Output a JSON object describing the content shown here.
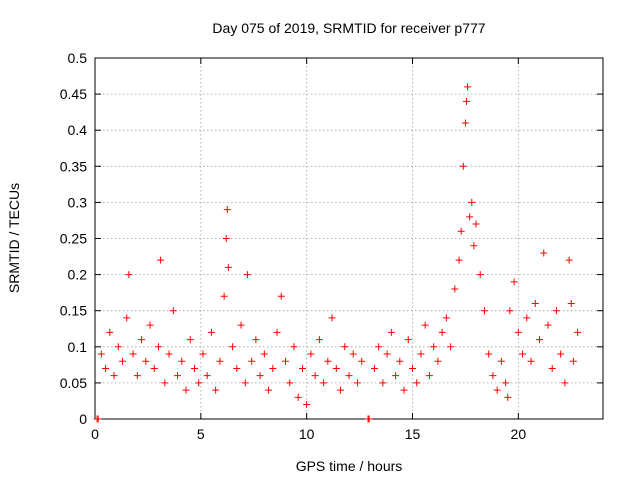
{
  "chart_data": {
    "type": "scatter",
    "title": "Day 075 of 2019, SRMTID for receiver p777",
    "xlabel": "GPS time / hours",
    "ylabel": "SRMTID / TECUs",
    "xlim": [
      0,
      24
    ],
    "ylim": [
      0,
      0.5
    ],
    "x_ticks": [
      0,
      5,
      10,
      15,
      20
    ],
    "x_tick_labels": [
      "0",
      "5",
      "10",
      "15",
      "20"
    ],
    "y_ticks": [
      0,
      0.05,
      0.1,
      0.15,
      0.2,
      0.25,
      0.3,
      0.35,
      0.4,
      0.45,
      0.5
    ],
    "y_tick_labels": [
      "0",
      "0.05",
      "0.1",
      "0.15",
      "0.2",
      "0.25",
      "0.3",
      "0.35",
      "0.4",
      "0.45",
      "0.5"
    ],
    "grid": true,
    "marker": "+",
    "color": "#ff0000",
    "series": [
      {
        "name": "SRMTID",
        "points": [
          [
            0.1,
            0.0
          ],
          [
            0.15,
            0.0
          ],
          [
            12.9,
            0.0
          ],
          [
            12.95,
            0.0
          ],
          [
            0.3,
            0.09
          ],
          [
            0.5,
            0.07
          ],
          [
            0.7,
            0.12
          ],
          [
            0.9,
            0.06
          ],
          [
            1.1,
            0.1
          ],
          [
            1.3,
            0.08
          ],
          [
            1.5,
            0.14
          ],
          [
            1.6,
            0.2
          ],
          [
            1.8,
            0.09
          ],
          [
            2.0,
            0.06
          ],
          [
            2.2,
            0.11
          ],
          [
            2.4,
            0.08
          ],
          [
            2.6,
            0.13
          ],
          [
            2.8,
            0.07
          ],
          [
            3.0,
            0.1
          ],
          [
            3.1,
            0.22
          ],
          [
            3.3,
            0.05
          ],
          [
            3.5,
            0.09
          ],
          [
            3.7,
            0.15
          ],
          [
            3.9,
            0.06
          ],
          [
            4.1,
            0.08
          ],
          [
            4.3,
            0.04
          ],
          [
            4.5,
            0.11
          ],
          [
            4.7,
            0.07
          ],
          [
            4.9,
            0.05
          ],
          [
            5.1,
            0.09
          ],
          [
            5.3,
            0.06
          ],
          [
            5.5,
            0.12
          ],
          [
            5.7,
            0.04
          ],
          [
            5.9,
            0.08
          ],
          [
            6.1,
            0.17
          ],
          [
            6.2,
            0.25
          ],
          [
            6.25,
            0.29
          ],
          [
            6.3,
            0.21
          ],
          [
            6.5,
            0.1
          ],
          [
            6.7,
            0.07
          ],
          [
            6.9,
            0.13
          ],
          [
            7.1,
            0.05
          ],
          [
            7.2,
            0.2
          ],
          [
            7.4,
            0.08
          ],
          [
            7.6,
            0.11
          ],
          [
            7.8,
            0.06
          ],
          [
            8.0,
            0.09
          ],
          [
            8.2,
            0.04
          ],
          [
            8.4,
            0.07
          ],
          [
            8.6,
            0.12
          ],
          [
            8.8,
            0.17
          ],
          [
            9.0,
            0.08
          ],
          [
            9.2,
            0.05
          ],
          [
            9.4,
            0.1
          ],
          [
            9.6,
            0.03
          ],
          [
            9.8,
            0.07
          ],
          [
            10.0,
            0.02
          ],
          [
            10.2,
            0.09
          ],
          [
            10.4,
            0.06
          ],
          [
            10.6,
            0.11
          ],
          [
            10.8,
            0.05
          ],
          [
            11.0,
            0.08
          ],
          [
            11.2,
            0.14
          ],
          [
            11.4,
            0.07
          ],
          [
            11.6,
            0.04
          ],
          [
            11.8,
            0.1
          ],
          [
            12.0,
            0.06
          ],
          [
            12.2,
            0.09
          ],
          [
            12.4,
            0.05
          ],
          [
            12.6,
            0.08
          ],
          [
            13.2,
            0.07
          ],
          [
            13.4,
            0.1
          ],
          [
            13.6,
            0.05
          ],
          [
            13.8,
            0.09
          ],
          [
            14.0,
            0.12
          ],
          [
            14.2,
            0.06
          ],
          [
            14.4,
            0.08
          ],
          [
            14.6,
            0.04
          ],
          [
            14.8,
            0.11
          ],
          [
            15.0,
            0.07
          ],
          [
            15.2,
            0.05
          ],
          [
            15.4,
            0.09
          ],
          [
            15.6,
            0.13
          ],
          [
            15.8,
            0.06
          ],
          [
            16.0,
            0.1
          ],
          [
            16.2,
            0.08
          ],
          [
            16.4,
            0.12
          ],
          [
            16.6,
            0.14
          ],
          [
            16.8,
            0.1
          ],
          [
            17.0,
            0.18
          ],
          [
            17.2,
            0.22
          ],
          [
            17.3,
            0.26
          ],
          [
            17.4,
            0.35
          ],
          [
            17.5,
            0.41
          ],
          [
            17.55,
            0.44
          ],
          [
            17.6,
            0.46
          ],
          [
            17.7,
            0.28
          ],
          [
            17.8,
            0.3
          ],
          [
            17.9,
            0.24
          ],
          [
            18.0,
            0.27
          ],
          [
            18.2,
            0.2
          ],
          [
            18.4,
            0.15
          ],
          [
            18.6,
            0.09
          ],
          [
            18.8,
            0.06
          ],
          [
            19.0,
            0.04
          ],
          [
            19.2,
            0.08
          ],
          [
            19.4,
            0.05
          ],
          [
            19.5,
            0.03
          ],
          [
            19.6,
            0.15
          ],
          [
            19.8,
            0.19
          ],
          [
            20.0,
            0.12
          ],
          [
            20.2,
            0.09
          ],
          [
            20.4,
            0.14
          ],
          [
            20.6,
            0.08
          ],
          [
            20.8,
            0.16
          ],
          [
            21.0,
            0.11
          ],
          [
            21.2,
            0.23
          ],
          [
            21.4,
            0.13
          ],
          [
            21.6,
            0.07
          ],
          [
            21.8,
            0.15
          ],
          [
            22.0,
            0.09
          ],
          [
            22.2,
            0.05
          ],
          [
            22.4,
            0.22
          ],
          [
            22.5,
            0.16
          ],
          [
            22.6,
            0.08
          ],
          [
            22.8,
            0.12
          ]
        ]
      }
    ]
  }
}
